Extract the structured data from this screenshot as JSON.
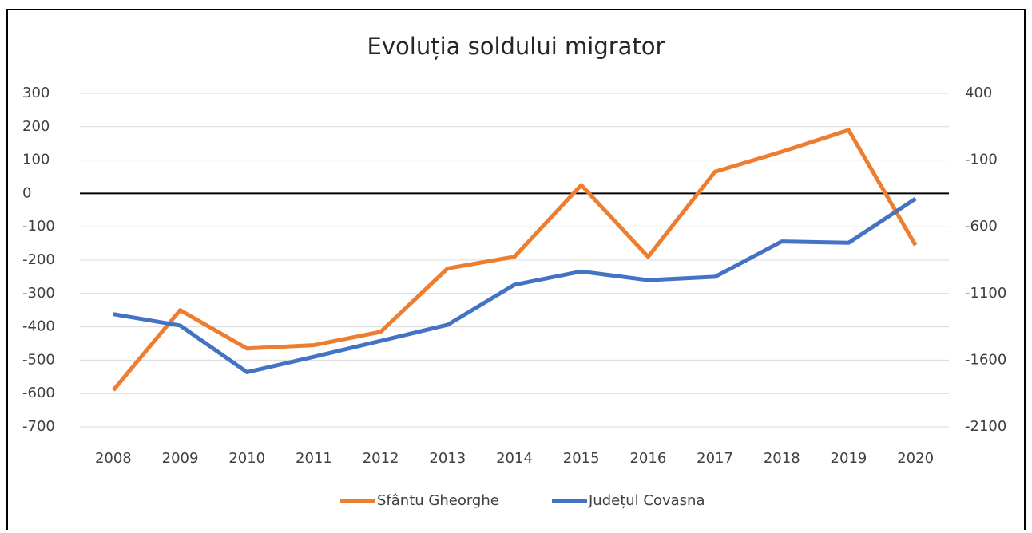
{
  "chart_data": {
    "type": "line",
    "title": "Evoluția soldului migrator",
    "categories": [
      "2008",
      "2009",
      "2010",
      "2011",
      "2012",
      "2013",
      "2014",
      "2015",
      "2016",
      "2017",
      "2018",
      "2019",
      "2020"
    ],
    "series": [
      {
        "name": "Sfântu Gheorghe",
        "color": "#ed7d31",
        "values": [
          -590,
          -350,
          -465,
          -455,
          -415,
          -225,
          -190,
          25,
          -190,
          65,
          125,
          190,
          -155
        ]
      },
      {
        "name": "Județul Covasna",
        "color": "#4472c4",
        "axis": "y2",
        "values": [
          -1255,
          -1340,
          -1690,
          -1575,
          -1455,
          -1335,
          -1035,
          -935,
          -1000,
          -975,
          -710,
          -720,
          -390
        ]
      }
    ],
    "ylim": [
      -700,
      300
    ],
    "yticks": [
      -700,
      -600,
      -500,
      -400,
      -300,
      -200,
      -100,
      0,
      100,
      200,
      300
    ],
    "y2lim": [
      -2100,
      400
    ],
    "y2ticks": [
      -2100,
      -1600,
      -1100,
      -600,
      -100,
      400
    ],
    "grid": true,
    "legend": "bottom"
  }
}
